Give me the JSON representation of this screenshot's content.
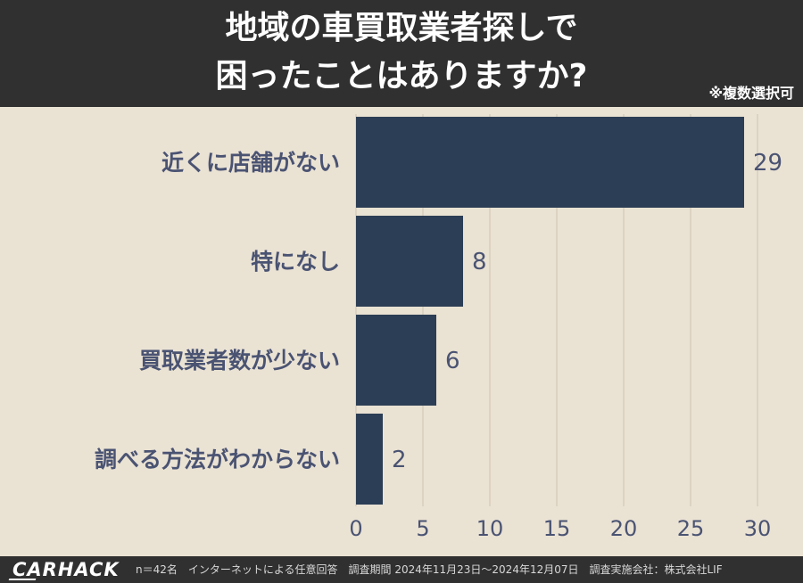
{
  "title": {
    "line1": "地域の車買取業者探しで",
    "line2": "困ったことはありますか?"
  },
  "note": "※複数選択可",
  "chart_data": {
    "type": "bar",
    "orientation": "horizontal",
    "categories": [
      "近くに店舗がない",
      "特になし",
      "買取業者数が少ない",
      "調べる方法がわからない"
    ],
    "values": [
      29,
      8,
      6,
      2
    ],
    "xlim": [
      0,
      30
    ],
    "xticks": [
      0,
      5,
      10,
      15,
      20,
      25,
      30
    ],
    "grid": true,
    "bar_color": "#2c3e55",
    "label_color": "#4a5372"
  },
  "footer": {
    "logo": "CARHACK",
    "caption": "n＝42名　インターネットによる任意回答　調査期間 2024年11月23日〜2024年12月07日　調査実施会社：株式会社LIF"
  },
  "colors": {
    "header_bg": "#303030",
    "panel_bg": "#eae2d3",
    "grid": "#d8cebd"
  }
}
